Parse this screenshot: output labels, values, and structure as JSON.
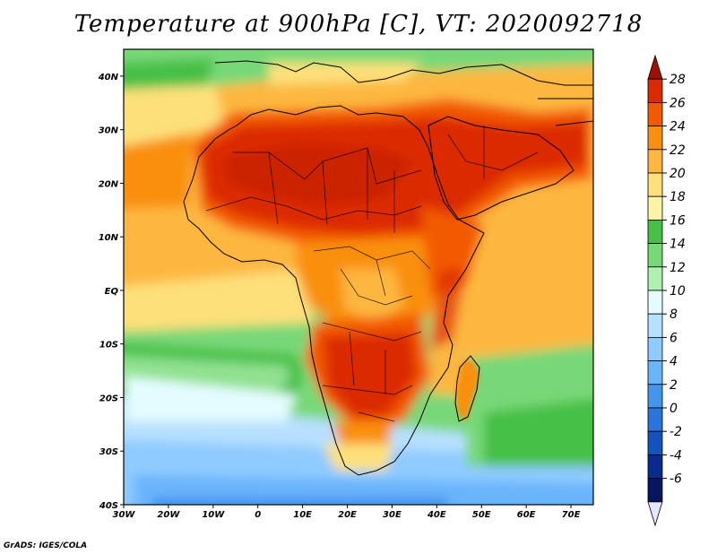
{
  "title": "Temperature at 900hPa [C], VT: 2020092718",
  "credit": "GrADS: IGES/COLA",
  "map": {
    "lon_ticks": [
      "30W",
      "20W",
      "10W",
      "0",
      "10E",
      "20E",
      "30E",
      "40E",
      "50E",
      "60E",
      "70E"
    ],
    "lat_ticks": [
      "40N",
      "30N",
      "20N",
      "10N",
      "EQ",
      "10S",
      "20S",
      "30S",
      "40S"
    ]
  },
  "colorbar": {
    "levels": [
      "28",
      "26",
      "24",
      "22",
      "20",
      "18",
      "16",
      "14",
      "12",
      "10",
      "8",
      "6",
      "4",
      "2",
      "0",
      "-2",
      "-4",
      "-6"
    ],
    "colors": [
      "#9e1000",
      "#dc2a00",
      "#f35a00",
      "#f98f10",
      "#fdb740",
      "#fde07a",
      "#fff3a8",
      "#46c046",
      "#78d878",
      "#b0f0b0",
      "#e4fcff",
      "#b7e0ff",
      "#8fcbff",
      "#6ab4fb",
      "#4595ec",
      "#2a74dc",
      "#1452c0",
      "#0a2a90",
      "#06165e",
      "#e6e6ff"
    ]
  },
  "chart_data": {
    "type": "heatmap",
    "title": "Temperature at 900hPa [C], VT: 2020092718",
    "variable": "Temperature at 900hPa",
    "units": "C",
    "valid_time": "2020092718",
    "x_range": [
      -30,
      75
    ],
    "y_range": [
      -40,
      45
    ],
    "colorbar_levels": [
      -6,
      -4,
      -2,
      0,
      2,
      4,
      6,
      8,
      10,
      12,
      14,
      16,
      18,
      20,
      22,
      24,
      26,
      28
    ],
    "colorbar_labels": [
      "28",
      "26",
      "24",
      "22",
      "20",
      "18",
      "16",
      "14",
      "12",
      "10",
      "8",
      "6",
      "4",
      "2",
      "0",
      "-2",
      "-4",
      "-6"
    ]
  }
}
